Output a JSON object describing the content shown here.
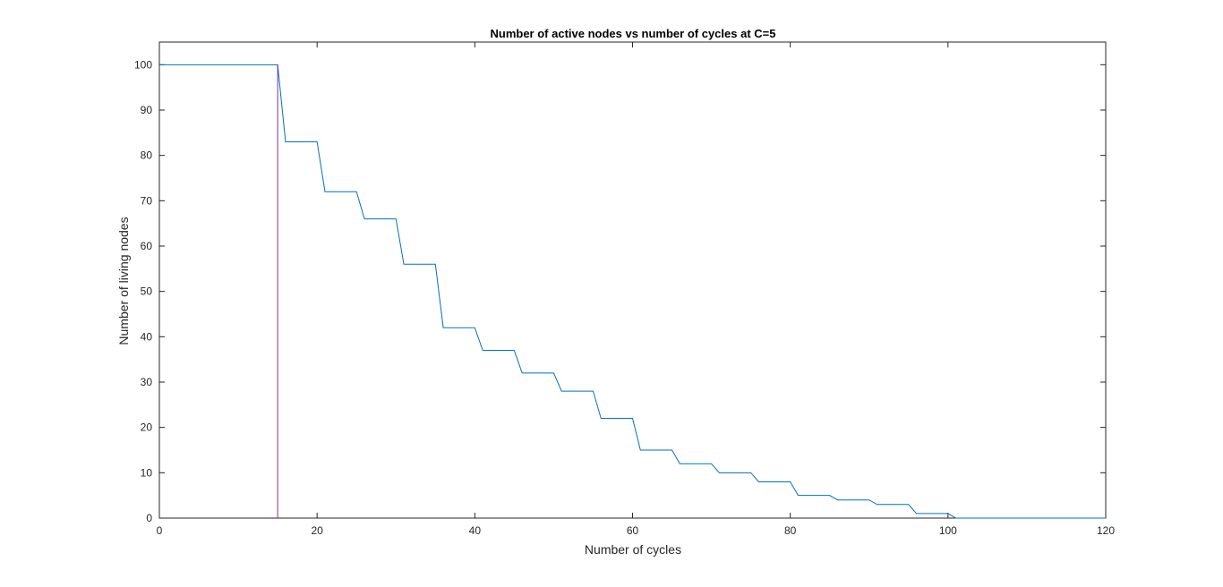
{
  "chart_data": {
    "type": "line",
    "title": "Number of active nodes vs number of cycles at C=5",
    "xlabel": "Number of cycles",
    "ylabel": "Number of living nodes",
    "xlim": [
      0,
      120
    ],
    "ylim": [
      0,
      105
    ],
    "xticks": [
      0,
      20,
      40,
      60,
      80,
      100,
      120
    ],
    "yticks": [
      0,
      10,
      20,
      30,
      40,
      50,
      60,
      70,
      80,
      90,
      100
    ],
    "grid": false,
    "legend": "none",
    "series": [
      {
        "color": "#0072BD",
        "x": [
          0,
          15,
          16,
          20,
          21,
          25,
          26,
          30,
          31,
          35,
          36,
          40,
          41,
          45,
          46,
          50,
          51,
          55,
          56,
          60,
          61,
          65,
          66,
          70,
          71,
          75,
          76,
          80,
          81,
          85,
          86,
          90,
          91,
          95,
          96,
          100,
          101,
          120
        ],
        "y": [
          100,
          100,
          83,
          83,
          72,
          72,
          66,
          66,
          56,
          56,
          42,
          42,
          37,
          37,
          32,
          32,
          28,
          28,
          22,
          22,
          15,
          15,
          12,
          12,
          10,
          10,
          8,
          8,
          5,
          5,
          4,
          4,
          3,
          3,
          1,
          1,
          0,
          0
        ]
      },
      {
        "color": "#7E2F8E",
        "x": [
          15,
          15
        ],
        "y": [
          0,
          100
        ]
      }
    ]
  }
}
